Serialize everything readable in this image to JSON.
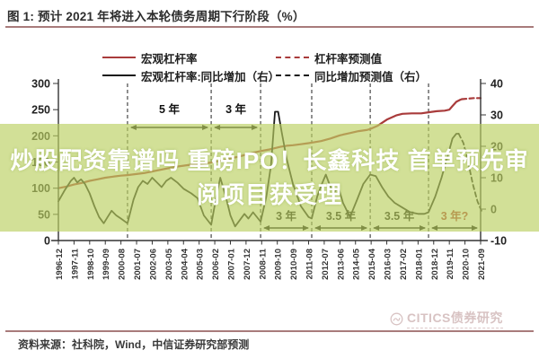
{
  "figure": {
    "title": "图 1: 预计 2021 年将进入本轮债务周期下行阶段（%）"
  },
  "legend": {
    "items": [
      {
        "label": "宏观杠杆率",
        "style": "solid",
        "color": "#a93b3b"
      },
      {
        "label": "杠杆率预测值",
        "style": "dashed",
        "color": "#a93b3b"
      },
      {
        "label": "宏观杠杆率:同比增加（右）",
        "style": "solid",
        "color": "#1a1a1a"
      },
      {
        "label": "同比增加预测值（右）",
        "style": "dashed",
        "color": "#1a1a1a"
      }
    ]
  },
  "banner": {
    "line1": "炒股配资靠谱吗 重磅IPO！长鑫科技 首单预先审",
    "line2": "阅项目获受理",
    "bg": "rgba(186,208,97,0.66)",
    "text_color": "#ffffff"
  },
  "watermark": {
    "text": "CITICS债券研究",
    "color": "#d8c3c3"
  },
  "source": {
    "text": "资料来源：社科院，Wind，中信证券研究部预测"
  },
  "chart_data": {
    "type": "line",
    "title": "预计 2021 年将进入本轮债务周期下行阶段（%）",
    "grid": false,
    "legend_position": "top",
    "x_labels": [
      "1996-12",
      "1997-11",
      "1998-10",
      "1999-09",
      "2000-08",
      "2001-07",
      "2002-06",
      "2003-05",
      "2004-04",
      "2005-03",
      "2006-02",
      "2007-01",
      "2007-12",
      "2008-11",
      "2009-10",
      "2010-09",
      "2011-08",
      "2012-07",
      "2013-06",
      "2014-05",
      "2015-04",
      "2016-03",
      "2017-02",
      "2018-01",
      "2018-12",
      "2019-11",
      "2020-10",
      "2021-09"
    ],
    "y_left": {
      "ticks": [
        300,
        250,
        200,
        150,
        100,
        50,
        0
      ],
      "range": [
        0,
        300
      ]
    },
    "y_right": {
      "ticks": [
        40,
        30,
        20,
        10,
        0,
        -10
      ],
      "range": [
        -10,
        40
      ]
    },
    "period_boundaries": [
      4.42,
      9.77,
      12.93,
      16.2,
      19.94,
      23.67
    ],
    "annotations": [
      {
        "label": "5 年",
        "row": "top",
        "i1": 4.42,
        "i2": 9.77,
        "color": "#111111"
      },
      {
        "label": "3 年",
        "row": "top",
        "i1": 9.77,
        "i2": 12.93,
        "color": "#111111"
      },
      {
        "label": "3 年",
        "row": "bottom",
        "i1": 12.93,
        "i2": 16.2,
        "color": "#111111"
      },
      {
        "label": "3.5 年",
        "row": "bottom",
        "i1": 16.2,
        "i2": 19.94,
        "color": "#111111"
      },
      {
        "label": "3.5 年",
        "row": "bottom",
        "i1": 19.94,
        "i2": 23.67,
        "color": "#111111"
      },
      {
        "label": "3 年?",
        "row": "bottom",
        "i1": 23.67,
        "i2": 27,
        "color": "#b03030"
      }
    ],
    "series": [
      {
        "name": "宏观杠杆率",
        "axis": "left",
        "style": "solid",
        "color": "#a93b3b",
        "width": 2.2,
        "points": [
          [
            0,
            100
          ],
          [
            0.5,
            103
          ],
          [
            1,
            107
          ],
          [
            1.5,
            110
          ],
          [
            2,
            114
          ],
          [
            2.5,
            117
          ],
          [
            3,
            120
          ],
          [
            3.5,
            122
          ],
          [
            4,
            124
          ],
          [
            4.42,
            125
          ],
          [
            5,
            127
          ],
          [
            5.5,
            129
          ],
          [
            6,
            132
          ],
          [
            6.5,
            135
          ],
          [
            7,
            138
          ],
          [
            7.5,
            141
          ],
          [
            8,
            143
          ],
          [
            8.5,
            145
          ],
          [
            9,
            146
          ],
          [
            9.77,
            149
          ],
          [
            10.5,
            153
          ],
          [
            11,
            157
          ],
          [
            11.5,
            160
          ],
          [
            12,
            164
          ],
          [
            12.5,
            168
          ],
          [
            12.93,
            171
          ],
          [
            13.5,
            174
          ],
          [
            13.9,
            177
          ],
          [
            14.2,
            179
          ],
          [
            14.6,
            181
          ],
          [
            15,
            182
          ],
          [
            15.5,
            184
          ],
          [
            16,
            186
          ],
          [
            16.2,
            187
          ],
          [
            16.8,
            190
          ],
          [
            17.4,
            195
          ],
          [
            18,
            201
          ],
          [
            18.6,
            205
          ],
          [
            19.2,
            209
          ],
          [
            19.7,
            211
          ],
          [
            19.94,
            213
          ],
          [
            20.4,
            219
          ],
          [
            21,
            231
          ],
          [
            21.6,
            239
          ],
          [
            22,
            242
          ],
          [
            22.6,
            243
          ],
          [
            23.2,
            243
          ],
          [
            23.67,
            245
          ],
          [
            24.2,
            247
          ],
          [
            24.7,
            248
          ],
          [
            25,
            250
          ],
          [
            25.2,
            257
          ],
          [
            25.45,
            265
          ],
          [
            25.7,
            269
          ],
          [
            25.8,
            270
          ]
        ]
      },
      {
        "name": "杠杆率预测值",
        "axis": "left",
        "style": "dashed",
        "color": "#a93b3b",
        "width": 2.2,
        "points": [
          [
            25.8,
            270
          ],
          [
            26.2,
            271
          ],
          [
            26.6,
            272
          ],
          [
            27,
            272
          ]
        ]
      },
      {
        "name": "宏观杠杆率:同比增加（右）",
        "axis": "right",
        "style": "solid",
        "color": "#1a1a1a",
        "width": 1.8,
        "points": [
          [
            0,
            2.5
          ],
          [
            0.4,
            6
          ],
          [
            0.8,
            9
          ],
          [
            1,
            10
          ],
          [
            1.2,
            8.5
          ],
          [
            1.45,
            9.5
          ],
          [
            1.7,
            8
          ],
          [
            2,
            5
          ],
          [
            2.3,
            1
          ],
          [
            2.6,
            -2.5
          ],
          [
            2.9,
            -4.5
          ],
          [
            3.15,
            -2.5
          ],
          [
            3.4,
            -0.5
          ],
          [
            3.7,
            -2
          ],
          [
            4,
            -3
          ],
          [
            4.42,
            -4.5
          ],
          [
            4.8,
            3
          ],
          [
            5.1,
            7
          ],
          [
            5.4,
            9
          ],
          [
            5.7,
            8
          ],
          [
            6,
            10
          ],
          [
            6.3,
            8.5
          ],
          [
            6.6,
            7
          ],
          [
            6.9,
            9
          ],
          [
            7.2,
            10
          ],
          [
            7.6,
            8.5
          ],
          [
            8,
            6.5
          ],
          [
            8.5,
            5
          ],
          [
            8.9,
            3.5
          ],
          [
            9.3,
            -2
          ],
          [
            9.77,
            -5
          ],
          [
            10.1,
            4
          ],
          [
            10.35,
            10
          ],
          [
            10.7,
            4
          ],
          [
            11,
            -2
          ],
          [
            11.3,
            -5.5
          ],
          [
            11.6,
            -3.5
          ],
          [
            11.9,
            -1.5
          ],
          [
            12.15,
            -3
          ],
          [
            12.45,
            -1
          ],
          [
            12.93,
            -4
          ],
          [
            13.3,
            4
          ],
          [
            13.6,
            14
          ],
          [
            13.85,
            31
          ],
          [
            14.05,
            31
          ],
          [
            14.3,
            24
          ],
          [
            14.6,
            16
          ],
          [
            15,
            8
          ],
          [
            15.5,
            1
          ],
          [
            16,
            -2.5
          ],
          [
            16.2,
            -3
          ],
          [
            16.55,
            4
          ],
          [
            16.85,
            8
          ],
          [
            17.1,
            11
          ],
          [
            17.4,
            7
          ],
          [
            17.65,
            5.5
          ],
          [
            17.9,
            7
          ],
          [
            18.2,
            2
          ],
          [
            18.65,
            -2.5
          ],
          [
            19.1,
            3
          ],
          [
            19.5,
            8
          ],
          [
            19.94,
            11
          ],
          [
            20.3,
            10.5
          ],
          [
            20.7,
            7
          ],
          [
            21.1,
            4
          ],
          [
            21.5,
            2
          ],
          [
            22,
            0.5
          ],
          [
            22.5,
            -1
          ],
          [
            23,
            -1.5
          ],
          [
            23.4,
            -1.5
          ],
          [
            23.67,
            -1
          ],
          [
            24.1,
            4
          ],
          [
            24.5,
            10
          ],
          [
            24.9,
            17
          ],
          [
            25.2,
            22.5
          ],
          [
            25.45,
            24
          ],
          [
            25.6,
            24
          ]
        ]
      },
      {
        "name": "同比增加预测值（右）",
        "axis": "right",
        "style": "dashed",
        "color": "#1a1a1a",
        "width": 1.8,
        "points": [
          [
            25.6,
            24
          ],
          [
            25.9,
            21
          ],
          [
            26.2,
            15
          ],
          [
            26.5,
            8
          ],
          [
            26.8,
            2.5
          ],
          [
            27.05,
            -0.5
          ]
        ]
      }
    ]
  }
}
